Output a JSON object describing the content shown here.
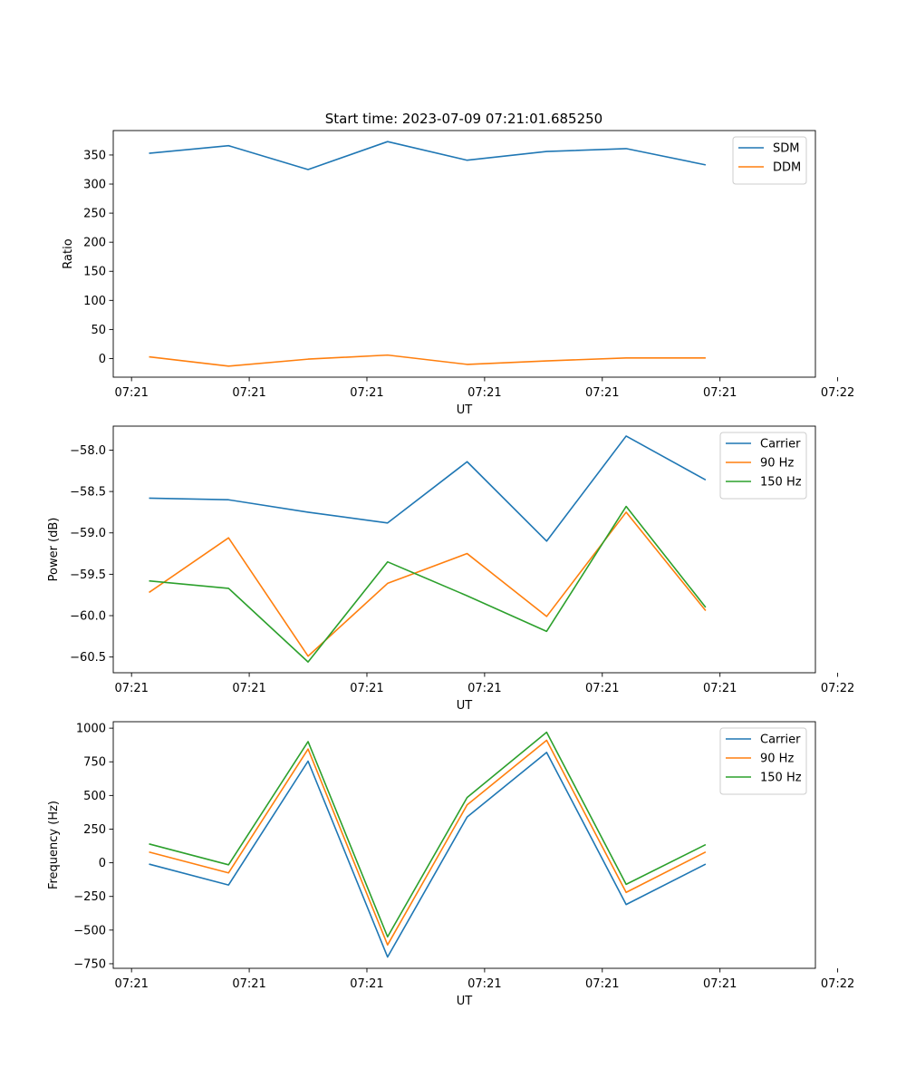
{
  "figure": {
    "title": "Start time: 2023-07-09 07:21:01.685250"
  },
  "colors": {
    "blue": "#1f77b4",
    "orange": "#ff7f0e",
    "green": "#2ca02c"
  },
  "chart_data": [
    {
      "type": "line",
      "title": "Start time: 2023-07-09 07:21:01.685250",
      "xlabel": "UT",
      "ylabel": "Ratio",
      "x": [
        1,
        2,
        3,
        4,
        5,
        6,
        7,
        8
      ],
      "xlim": [
        0.55,
        9.38
      ],
      "ylim": [
        -32,
        392
      ],
      "yticks": [
        0,
        50,
        100,
        150,
        200,
        250,
        300,
        350
      ],
      "xticks": [
        0.78,
        2.26,
        3.74,
        5.22,
        6.7,
        8.18,
        9.66
      ],
      "xtick_labels": [
        "07:21",
        "07:21",
        "07:21",
        "07:21",
        "07:21",
        "07:21",
        "07:22"
      ],
      "legend_position": "top-right",
      "grid": false,
      "series": [
        {
          "name": "SDM",
          "color": "#1f77b4",
          "values": [
            353,
            366,
            325,
            373,
            341,
            356,
            361,
            333
          ]
        },
        {
          "name": "DDM",
          "color": "#ff7f0e",
          "values": [
            3,
            -13,
            -1,
            6,
            -10,
            -4,
            1,
            1
          ]
        }
      ]
    },
    {
      "type": "line",
      "title": "",
      "xlabel": "UT",
      "ylabel": "Power (dB)",
      "x": [
        1,
        2,
        3,
        4,
        5,
        6,
        7,
        8
      ],
      "xlim": [
        0.55,
        9.38
      ],
      "ylim": [
        -60.69,
        -57.71
      ],
      "yticks": [
        -60.5,
        -60.0,
        -59.5,
        -59.0,
        -58.5,
        -58.0
      ],
      "ytick_labels": [
        "−60.5",
        "−60.0",
        "−59.5",
        "−59.0",
        "−58.5",
        "−58.0"
      ],
      "xticks": [
        0.78,
        2.26,
        3.74,
        5.22,
        6.7,
        8.18,
        9.66
      ],
      "xtick_labels": [
        "07:21",
        "07:21",
        "07:21",
        "07:21",
        "07:21",
        "07:21",
        "07:22"
      ],
      "legend_position": "top-right",
      "grid": false,
      "series": [
        {
          "name": "Carrier",
          "color": "#1f77b4",
          "values": [
            -58.58,
            -58.6,
            -58.75,
            -58.88,
            -58.14,
            -59.1,
            -57.83,
            -58.36
          ]
        },
        {
          "name": "90 Hz",
          "color": "#ff7f0e",
          "values": [
            -59.72,
            -59.06,
            -60.49,
            -59.61,
            -59.25,
            -60.01,
            -58.75,
            -59.94
          ]
        },
        {
          "name": "150 Hz",
          "color": "#2ca02c",
          "values": [
            -59.58,
            -59.67,
            -60.56,
            -59.35,
            -59.76,
            -60.19,
            -58.68,
            -59.9
          ]
        }
      ]
    },
    {
      "type": "line",
      "title": "",
      "xlabel": "UT",
      "ylabel": "Frequency (Hz)",
      "x": [
        1,
        2,
        3,
        4,
        5,
        6,
        7,
        8
      ],
      "xlim": [
        0.55,
        9.38
      ],
      "ylim": [
        -784,
        1048
      ],
      "yticks": [
        -750,
        -500,
        -250,
        0,
        250,
        500,
        750,
        1000
      ],
      "ytick_labels": [
        "−750",
        "−500",
        "−250",
        "0",
        "250",
        "500",
        "750",
        "1000"
      ],
      "xticks": [
        0.78,
        2.26,
        3.74,
        5.22,
        6.7,
        8.18,
        9.66
      ],
      "xtick_labels": [
        "07:21",
        "07:21",
        "07:21",
        "07:21",
        "07:21",
        "07:21",
        "07:22"
      ],
      "legend_position": "top-right",
      "grid": false,
      "series": [
        {
          "name": "Carrier",
          "color": "#1f77b4",
          "values": [
            -10,
            -165,
            755,
            -700,
            340,
            820,
            -310,
            -10
          ]
        },
        {
          "name": "90 Hz",
          "color": "#ff7f0e",
          "values": [
            80,
            -75,
            845,
            -610,
            430,
            910,
            -220,
            80
          ]
        },
        {
          "name": "150 Hz",
          "color": "#2ca02c",
          "values": [
            140,
            -15,
            900,
            -550,
            485,
            970,
            -160,
            135
          ]
        }
      ]
    }
  ]
}
